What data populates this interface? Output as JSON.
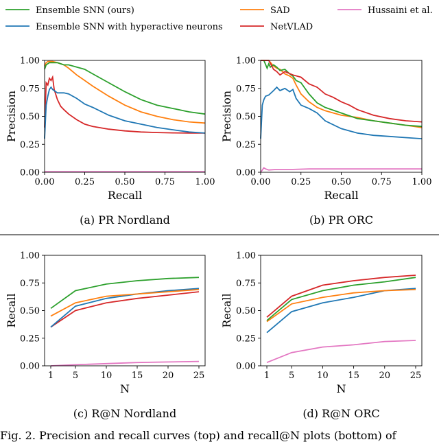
{
  "legend": [
    {
      "name": "Ensemble SNN (ours)",
      "color": "#2ca02c"
    },
    {
      "name": "Ensemble SNN with hyperactive neurons",
      "color": "#1f77b4"
    },
    {
      "name": "SAD",
      "color": "#ff7f0e"
    },
    {
      "name": "NetVLAD",
      "color": "#d62728"
    },
    {
      "name": "Hussaini et al.",
      "color": "#e377c2"
    }
  ],
  "figure_caption": "Fig. 2.   Precision and recall curves (top) and recall@N plots (bottom) of",
  "chart_data": [
    {
      "type": "line",
      "caption": "(a)  PR Nordland",
      "xlabel": "Recall",
      "ylabel": "Precision",
      "xlim": [
        0,
        1
      ],
      "ylim": [
        0,
        1
      ],
      "xticks": [
        "0.00",
        "0.25",
        "0.50",
        "0.75",
        "1.00"
      ],
      "yticks": [
        "0.00",
        "0.25",
        "0.50",
        "0.75",
        "1.00"
      ],
      "grid": false,
      "series": [
        {
          "name": "Hussaini et al.",
          "color": "#e377c2",
          "x": [
            0,
            0.2,
            0.5,
            0.8,
            1.0
          ],
          "y": [
            0.005,
            0.005,
            0.005,
            0.005,
            0.005
          ]
        },
        {
          "name": "NetVLAD",
          "color": "#d62728",
          "x": [
            0,
            0.01,
            0.02,
            0.03,
            0.04,
            0.05,
            0.06,
            0.08,
            0.1,
            0.12,
            0.15,
            0.2,
            0.25,
            0.3,
            0.4,
            0.5,
            0.6,
            0.7,
            0.8,
            0.9,
            1.0
          ],
          "y": [
            0.4,
            0.8,
            0.78,
            0.84,
            0.82,
            0.85,
            0.74,
            0.65,
            0.59,
            0.56,
            0.52,
            0.47,
            0.43,
            0.41,
            0.385,
            0.37,
            0.36,
            0.355,
            0.352,
            0.35,
            0.35
          ]
        },
        {
          "name": "Ensemble SNN with hyperactive neurons",
          "color": "#1f77b4",
          "x": [
            0,
            0.01,
            0.02,
            0.03,
            0.04,
            0.05,
            0.06,
            0.08,
            0.1,
            0.12,
            0.15,
            0.2,
            0.25,
            0.3,
            0.4,
            0.5,
            0.6,
            0.7,
            0.8,
            0.9,
            1.0
          ],
          "y": [
            0.3,
            0.6,
            0.68,
            0.74,
            0.76,
            0.74,
            0.73,
            0.71,
            0.71,
            0.71,
            0.7,
            0.66,
            0.61,
            0.58,
            0.51,
            0.46,
            0.43,
            0.4,
            0.38,
            0.36,
            0.35
          ]
        },
        {
          "name": "SAD",
          "color": "#ff7f0e",
          "x": [
            0,
            0.01,
            0.02,
            0.03,
            0.05,
            0.08,
            0.1,
            0.12,
            0.15,
            0.2,
            0.25,
            0.3,
            0.4,
            0.5,
            0.6,
            0.7,
            0.8,
            0.9,
            1.0
          ],
          "y": [
            0.95,
            0.98,
            0.99,
            0.99,
            0.99,
            0.98,
            0.97,
            0.96,
            0.93,
            0.87,
            0.82,
            0.77,
            0.68,
            0.6,
            0.54,
            0.5,
            0.47,
            0.45,
            0.44
          ]
        },
        {
          "name": "Ensemble SNN (ours)",
          "color": "#2ca02c",
          "x": [
            0,
            0.01,
            0.02,
            0.03,
            0.05,
            0.08,
            0.1,
            0.12,
            0.15,
            0.2,
            0.25,
            0.3,
            0.4,
            0.5,
            0.6,
            0.7,
            0.8,
            0.9,
            1.0
          ],
          "y": [
            0.92,
            0.96,
            0.97,
            0.98,
            0.98,
            0.98,
            0.97,
            0.96,
            0.96,
            0.94,
            0.92,
            0.88,
            0.8,
            0.72,
            0.65,
            0.6,
            0.57,
            0.54,
            0.52
          ]
        }
      ]
    },
    {
      "type": "line",
      "caption": "(b)  PR ORC",
      "xlabel": "Recall",
      "ylabel": "Precision",
      "xlim": [
        0,
        1
      ],
      "ylim": [
        0,
        1
      ],
      "xticks": [
        "0.00",
        "0.25",
        "0.50",
        "0.75",
        "1.00"
      ],
      "yticks": [
        "0.00",
        "0.25",
        "0.50",
        "0.75",
        "1.00"
      ],
      "grid": false,
      "series": [
        {
          "name": "Hussaini et al.",
          "color": "#e377c2",
          "x": [
            0,
            0.01,
            0.02,
            0.03,
            0.05,
            0.1,
            0.2,
            0.3,
            0.5,
            0.7,
            0.9,
            1.0
          ],
          "y": [
            0.0,
            0.02,
            0.04,
            0.03,
            0.02,
            0.025,
            0.025,
            0.03,
            0.03,
            0.03,
            0.03,
            0.03
          ]
        },
        {
          "name": "Ensemble SNN with hyperactive neurons",
          "color": "#1f77b4",
          "x": [
            0,
            0.01,
            0.02,
            0.03,
            0.05,
            0.08,
            0.1,
            0.12,
            0.15,
            0.18,
            0.2,
            0.22,
            0.25,
            0.3,
            0.35,
            0.4,
            0.5,
            0.6,
            0.7,
            0.8,
            0.9,
            1.0
          ],
          "y": [
            0.3,
            0.6,
            0.65,
            0.68,
            0.69,
            0.73,
            0.76,
            0.73,
            0.75,
            0.72,
            0.74,
            0.66,
            0.6,
            0.57,
            0.53,
            0.46,
            0.39,
            0.35,
            0.33,
            0.32,
            0.31,
            0.3
          ]
        },
        {
          "name": "SAD",
          "color": "#ff7f0e",
          "x": [
            0,
            0.02,
            0.05,
            0.08,
            0.1,
            0.12,
            0.15,
            0.18,
            0.2,
            0.22,
            0.25,
            0.3,
            0.35,
            0.4,
            0.5,
            0.6,
            0.7,
            0.8,
            0.9,
            1.0
          ],
          "y": [
            1.0,
            1.0,
            1.0,
            0.95,
            0.93,
            0.92,
            0.88,
            0.86,
            0.84,
            0.78,
            0.7,
            0.63,
            0.58,
            0.55,
            0.51,
            0.49,
            0.46,
            0.44,
            0.42,
            0.4
          ]
        },
        {
          "name": "Ensemble SNN (ours)",
          "color": "#2ca02c",
          "x": [
            0,
            0.02,
            0.04,
            0.05,
            0.06,
            0.08,
            0.1,
            0.12,
            0.15,
            0.18,
            0.2,
            0.22,
            0.25,
            0.3,
            0.35,
            0.4,
            0.5,
            0.6,
            0.7,
            0.8,
            0.9,
            1.0
          ],
          "y": [
            1.0,
            1.0,
            0.93,
            0.97,
            0.94,
            0.96,
            0.94,
            0.91,
            0.92,
            0.88,
            0.86,
            0.82,
            0.8,
            0.7,
            0.62,
            0.58,
            0.53,
            0.48,
            0.46,
            0.44,
            0.42,
            0.41
          ]
        },
        {
          "name": "NetVLAD",
          "color": "#d62728",
          "x": [
            0,
            0.02,
            0.05,
            0.08,
            0.1,
            0.12,
            0.15,
            0.2,
            0.25,
            0.3,
            0.35,
            0.4,
            0.45,
            0.5,
            0.55,
            0.6,
            0.7,
            0.8,
            0.9,
            1.0
          ],
          "y": [
            1.0,
            1.0,
            1.0,
            0.92,
            0.9,
            0.87,
            0.9,
            0.87,
            0.85,
            0.79,
            0.76,
            0.7,
            0.67,
            0.63,
            0.6,
            0.56,
            0.51,
            0.48,
            0.46,
            0.45
          ]
        }
      ]
    },
    {
      "type": "line",
      "caption": "(c)  R@N Nordland",
      "xlabel": "N",
      "ylabel": "Recall",
      "xlim": [
        0,
        26
      ],
      "ylim": [
        0,
        1
      ],
      "xticks": [
        "1",
        "5",
        "10",
        "15",
        "20",
        "25"
      ],
      "yticks": [
        "0.00",
        "0.25",
        "0.50",
        "0.75",
        "1.00"
      ],
      "grid": false,
      "series": [
        {
          "name": "Hussaini et al.",
          "color": "#e377c2",
          "x": [
            1,
            5,
            10,
            15,
            20,
            25
          ],
          "y": [
            0.0,
            0.01,
            0.02,
            0.03,
            0.035,
            0.04
          ]
        },
        {
          "name": "NetVLAD",
          "color": "#d62728",
          "x": [
            1,
            5,
            10,
            15,
            20,
            25
          ],
          "y": [
            0.35,
            0.5,
            0.57,
            0.61,
            0.64,
            0.67
          ]
        },
        {
          "name": "Ensemble SNN with hyperactive neurons",
          "color": "#1f77b4",
          "x": [
            1,
            5,
            10,
            15,
            20,
            25
          ],
          "y": [
            0.35,
            0.54,
            0.61,
            0.65,
            0.68,
            0.7
          ]
        },
        {
          "name": "SAD",
          "color": "#ff7f0e",
          "x": [
            1,
            5,
            10,
            15,
            20,
            25
          ],
          "y": [
            0.45,
            0.57,
            0.63,
            0.65,
            0.67,
            0.69
          ]
        },
        {
          "name": "Ensemble SNN (ours)",
          "color": "#2ca02c",
          "x": [
            1,
            5,
            10,
            15,
            20,
            25
          ],
          "y": [
            0.52,
            0.68,
            0.74,
            0.77,
            0.79,
            0.8
          ]
        }
      ]
    },
    {
      "type": "line",
      "caption": "(d)  R@N ORC",
      "xlabel": "N",
      "ylabel": "Recall",
      "xlim": [
        0,
        26
      ],
      "ylim": [
        0,
        1
      ],
      "xticks": [
        "1",
        "5",
        "10",
        "15",
        "20",
        "25"
      ],
      "yticks": [
        "0.00",
        "0.25",
        "0.50",
        "0.75",
        "1.00"
      ],
      "grid": false,
      "series": [
        {
          "name": "Hussaini et al.",
          "color": "#e377c2",
          "x": [
            1,
            5,
            10,
            15,
            20,
            25
          ],
          "y": [
            0.03,
            0.12,
            0.17,
            0.19,
            0.22,
            0.23
          ]
        },
        {
          "name": "Ensemble SNN with hyperactive neurons",
          "color": "#1f77b4",
          "x": [
            1,
            5,
            10,
            15,
            20,
            25
          ],
          "y": [
            0.3,
            0.49,
            0.57,
            0.62,
            0.68,
            0.7
          ]
        },
        {
          "name": "SAD",
          "color": "#ff7f0e",
          "x": [
            1,
            5,
            10,
            15,
            20,
            25
          ],
          "y": [
            0.4,
            0.56,
            0.62,
            0.66,
            0.68,
            0.69
          ]
        },
        {
          "name": "Ensemble SNN (ours)",
          "color": "#2ca02c",
          "x": [
            1,
            5,
            10,
            15,
            20,
            25
          ],
          "y": [
            0.41,
            0.6,
            0.68,
            0.73,
            0.76,
            0.8
          ]
        },
        {
          "name": "NetVLAD",
          "color": "#d62728",
          "x": [
            1,
            5,
            10,
            15,
            20,
            25
          ],
          "y": [
            0.44,
            0.63,
            0.73,
            0.77,
            0.8,
            0.82
          ]
        }
      ]
    }
  ]
}
